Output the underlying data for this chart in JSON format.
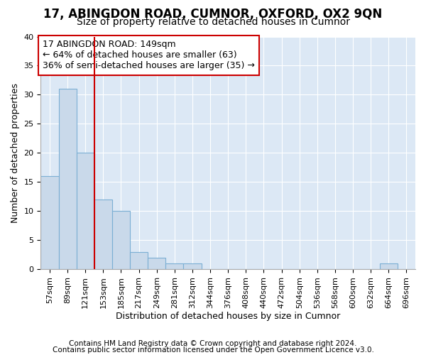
{
  "title": "17, ABINGDON ROAD, CUMNOR, OXFORD, OX2 9QN",
  "subtitle": "Size of property relative to detached houses in Cumnor",
  "xlabel": "Distribution of detached houses by size in Cumnor",
  "ylabel": "Number of detached properties",
  "bin_labels": [
    "57sqm",
    "89sqm",
    "121sqm",
    "153sqm",
    "185sqm",
    "217sqm",
    "249sqm",
    "281sqm",
    "312sqm",
    "344sqm",
    "376sqm",
    "408sqm",
    "440sqm",
    "472sqm",
    "504sqm",
    "536sqm",
    "568sqm",
    "600sqm",
    "632sqm",
    "664sqm",
    "696sqm"
  ],
  "bar_values": [
    16,
    31,
    20,
    12,
    10,
    3,
    2,
    1,
    1,
    0,
    0,
    0,
    0,
    0,
    0,
    0,
    0,
    0,
    0,
    1,
    0
  ],
  "bar_color": "#c9d9ea",
  "bar_edge_color": "#7bafd4",
  "vline_x": 3,
  "vline_color": "#cc0000",
  "annotation_line1": "17 ABINGDON ROAD: 149sqm",
  "annotation_line2": "← 64% of detached houses are smaller (63)",
  "annotation_line3": "36% of semi-detached houses are larger (35) →",
  "annotation_box_facecolor": "#ffffff",
  "annotation_box_edgecolor": "#cc0000",
  "ylim": [
    0,
    40
  ],
  "yticks": [
    0,
    5,
    10,
    15,
    20,
    25,
    30,
    35,
    40
  ],
  "footer_line1": "Contains HM Land Registry data © Crown copyright and database right 2024.",
  "footer_line2": "Contains public sector information licensed under the Open Government Licence v3.0.",
  "fig_bg_color": "#ffffff",
  "plot_bg_color": "#dce8f5",
  "grid_color": "#ffffff",
  "title_fontsize": 12,
  "subtitle_fontsize": 10,
  "axis_label_fontsize": 9,
  "tick_fontsize": 8,
  "annotation_fontsize": 9,
  "footer_fontsize": 7.5
}
